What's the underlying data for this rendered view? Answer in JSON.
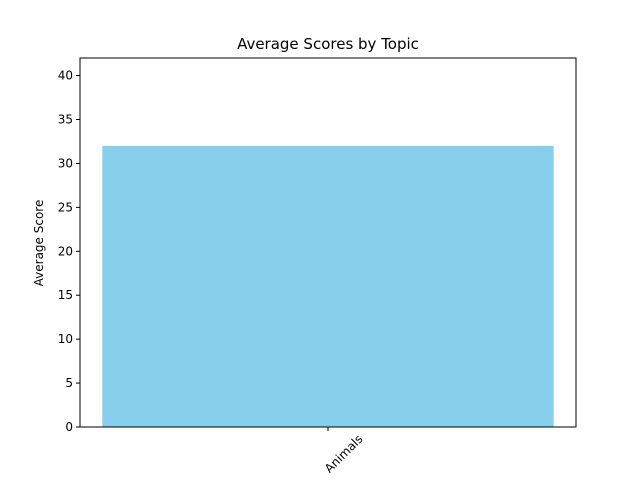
{
  "chart_data": {
    "type": "bar",
    "title": "Average Scores by Topic",
    "xlabel": "",
    "ylabel": "Average Score",
    "categories": [
      "Animals"
    ],
    "values": [
      32
    ],
    "ylim": [
      0,
      42
    ],
    "yticks": [
      0,
      5,
      10,
      15,
      20,
      25,
      30,
      35,
      40
    ],
    "xtick_rotation_deg": 45,
    "grid": false,
    "legend": "none",
    "bar_color": "#87CEEB"
  }
}
